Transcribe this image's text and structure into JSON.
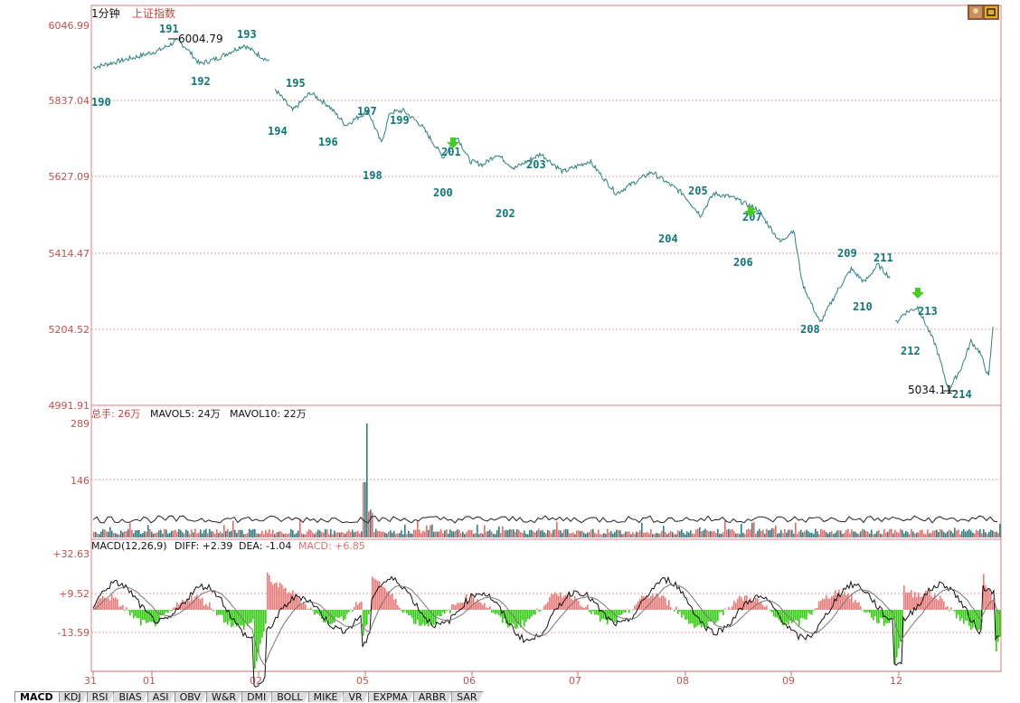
{
  "header": {
    "period": "1分钟",
    "index_name": "上证指数"
  },
  "colors": {
    "up": "#e76b6b",
    "down": "#2f7f7f",
    "grid": "#e3a0a0",
    "axis_text": "#c05050",
    "label": "#117777",
    "arrow": "#44cc22"
  },
  "price_panel": {
    "y_ticks": [
      "6046.99",
      "5837.04",
      "5627.09",
      "5414.47",
      "5204.52",
      "4991.91"
    ],
    "annotations": {
      "high": "6004.79",
      "low": "5034.11"
    },
    "wave_labels": [
      "190",
      "191",
      "192",
      "193",
      "194",
      "195",
      "196",
      "197",
      "198",
      "199",
      "200",
      "201",
      "202",
      "203",
      "204",
      "205",
      "206",
      "207",
      "208",
      "209",
      "210",
      "211",
      "212",
      "213",
      "214"
    ]
  },
  "volume_panel": {
    "legend": {
      "total": "总手: 26万",
      "mavol5": "MAVOL5: 24万",
      "mavol10": "MAVOL10: 22万"
    },
    "y_ticks": [
      "289",
      "146"
    ]
  },
  "macd_panel": {
    "legend": {
      "name": "MACD(12,26,9)",
      "diff": "DIFF: +2.39",
      "dea": "DEA: -1.04",
      "macd": "MACD: +6.85"
    },
    "y_ticks": [
      "+32.63",
      "+9.52",
      "-13.59"
    ]
  },
  "x_axis": {
    "ticks": [
      "31",
      "01",
      "02",
      "05",
      "06",
      "07",
      "08",
      "09",
      "12"
    ]
  },
  "tabs": [
    "MACD",
    "KDJ",
    "RSI",
    "BIAS",
    "ASI",
    "OBV",
    "W&R",
    "DMI",
    "BOLL",
    "MIKE",
    "VR",
    "EXPMA",
    "ARBR",
    "SAR"
  ],
  "chart_data": {
    "type": "line",
    "title": "1分钟 上证指数",
    "ylim": [
      4991.91,
      6046.99
    ],
    "x": [
      "31",
      "01",
      "02",
      "05",
      "06",
      "07",
      "08",
      "09",
      "12"
    ],
    "price_waypoints": [
      [
        0,
        5930
      ],
      [
        5,
        5945
      ],
      [
        10,
        5960
      ],
      [
        15,
        5978
      ],
      [
        18,
        5998
      ],
      [
        19,
        6004.79
      ],
      [
        21,
        5985
      ],
      [
        24,
        5940
      ],
      [
        28,
        5955
      ],
      [
        34,
        5992
      ],
      [
        38,
        5960
      ],
      [
        40,
        5945
      ],
      [
        41,
        5870
      ],
      [
        45,
        5810
      ],
      [
        49,
        5860
      ],
      [
        53,
        5825
      ],
      [
        57,
        5770
      ],
      [
        62,
        5810
      ],
      [
        65,
        5720
      ],
      [
        67,
        5805
      ],
      [
        70,
        5810
      ],
      [
        74,
        5770
      ],
      [
        79,
        5680
      ],
      [
        82,
        5740
      ],
      [
        85,
        5670
      ],
      [
        88,
        5660
      ],
      [
        91,
        5690
      ],
      [
        95,
        5650
      ],
      [
        101,
        5690
      ],
      [
        106,
        5640
      ],
      [
        112,
        5670
      ],
      [
        118,
        5580
      ],
      [
        126,
        5640
      ],
      [
        133,
        5580
      ],
      [
        137,
        5520
      ],
      [
        140,
        5580
      ],
      [
        144,
        5570
      ],
      [
        150,
        5535
      ],
      [
        155,
        5445
      ],
      [
        158,
        5480
      ],
      [
        160,
        5330
      ],
      [
        164,
        5220
      ],
      [
        168,
        5312
      ],
      [
        171,
        5370
      ],
      [
        174,
        5334
      ],
      [
        177,
        5382
      ],
      [
        180,
        5344
      ],
      [
        181,
        5220
      ],
      [
        183,
        5248
      ],
      [
        186,
        5264
      ],
      [
        190,
        5160
      ],
      [
        193,
        5034.11
      ],
      [
        196,
        5100
      ],
      [
        198,
        5170
      ],
      [
        200,
        5140
      ],
      [
        202,
        5070
      ],
      [
        203,
        5210
      ]
    ],
    "volume_note": "per-minute turnover bars (万手), max ≈ 289 near 05",
    "macd_scale": [
      -13.59,
      32.63
    ]
  }
}
